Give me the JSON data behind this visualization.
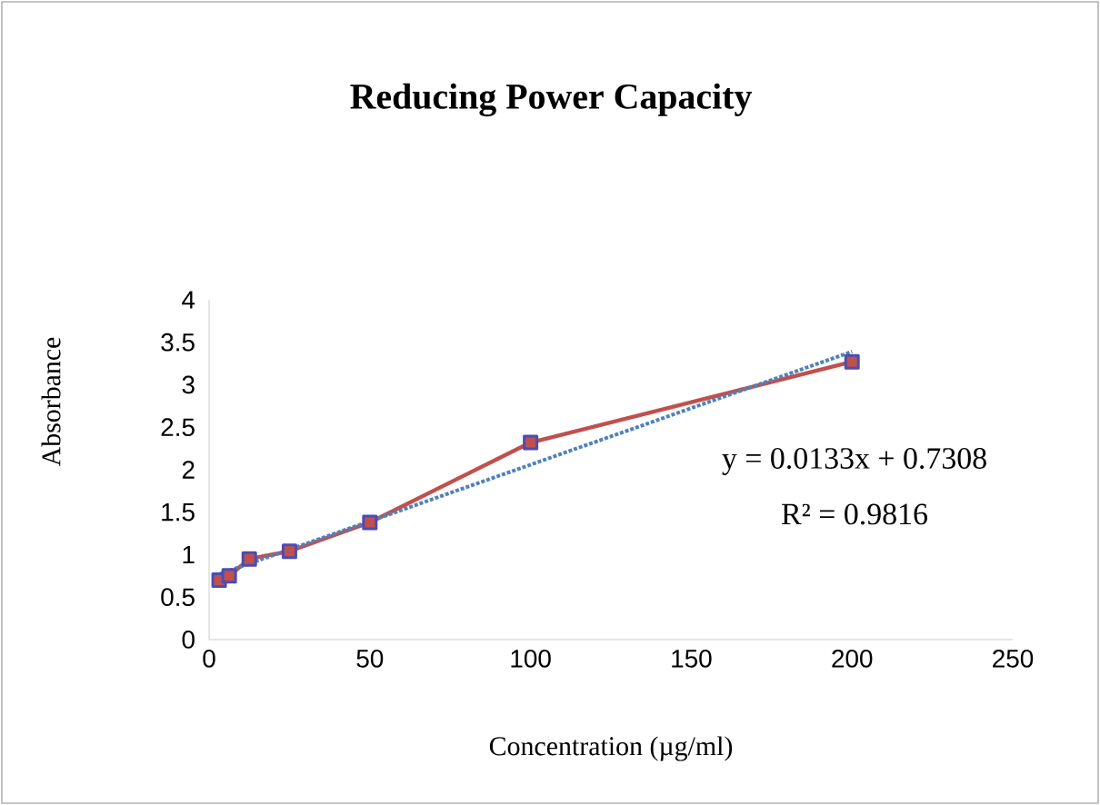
{
  "chart_data": {
    "type": "line",
    "title": "Reducing Power Capacity",
    "xlabel": "Concentration (µg/ml)",
    "ylabel": "Absorbance",
    "x": [
      3.125,
      6.25,
      12.5,
      25,
      50,
      100,
      200
    ],
    "series": [
      {
        "color": "#c0504d",
        "values": [
          0.7,
          0.75,
          0.95,
          1.04,
          1.38,
          2.32,
          3.27
        ],
        "marker": "square",
        "line_style": "solid"
      },
      {
        "type": "line",
        "x": [
          3.125,
          200
        ],
        "values": [
          0.77,
          3.39
        ],
        "color": "#4f81bd",
        "marker": "none",
        "line_style": "dotted"
      }
    ],
    "annotations": [
      "y = 0.0133x + 0.7308",
      "R² = 0.9816"
    ],
    "xlim": [
      0,
      250
    ],
    "ylim": [
      0,
      4
    ],
    "xticks": [
      0,
      50,
      100,
      150,
      200,
      250
    ],
    "yticks": [
      0,
      0.5,
      1,
      1.5,
      2,
      2.5,
      3,
      3.5,
      4
    ],
    "grid": false
  }
}
